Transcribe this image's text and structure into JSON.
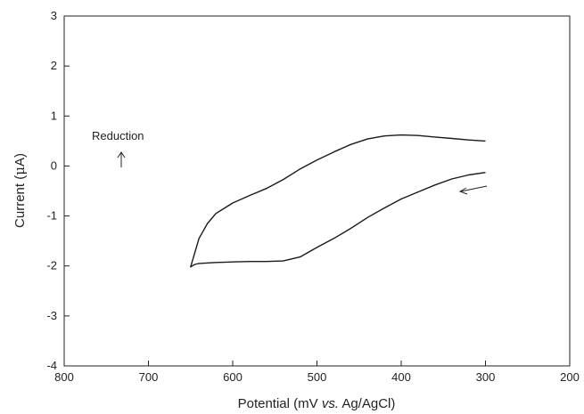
{
  "chart_data": {
    "type": "line",
    "title": "",
    "xlabel": {
      "prefix": "Potential (mV ",
      "italic": "vs.",
      "suffix": " Ag/AgCl)"
    },
    "ylabel": {
      "prefix": "Current (",
      "mu": "μ",
      "suffix": "A)"
    },
    "xlim": [
      800,
      200
    ],
    "ylim": [
      -4,
      3
    ],
    "x_reversed": true,
    "xticks": [
      800,
      700,
      600,
      500,
      400,
      300,
      200
    ],
    "yticks": [
      -4,
      -3,
      -2,
      -1,
      0,
      1,
      2,
      3
    ],
    "grid": false,
    "annotations": [
      {
        "text": "Reduction",
        "arrow": "up"
      },
      {
        "text": "",
        "arrow": "scan-direction-left"
      }
    ],
    "series": [
      {
        "stroke": "#1a1a1a",
        "x": [
          300,
          320,
          340,
          360,
          380,
          400,
          420,
          440,
          460,
          480,
          500,
          520,
          540,
          560,
          580,
          600,
          620,
          630,
          640,
          650,
          645,
          640,
          620,
          600,
          580,
          560,
          540,
          520,
          500,
          480,
          460,
          440,
          420,
          400,
          380,
          360,
          340,
          320,
          300
        ],
        "y": [
          0.5,
          0.52,
          0.55,
          0.58,
          0.61,
          0.62,
          0.6,
          0.54,
          0.43,
          0.28,
          0.12,
          -0.06,
          -0.27,
          -0.45,
          -0.59,
          -0.74,
          -0.95,
          -1.15,
          -1.45,
          -2.02,
          -1.97,
          -1.95,
          -1.93,
          -1.92,
          -1.91,
          -1.91,
          -1.9,
          -1.82,
          -1.63,
          -1.45,
          -1.25,
          -1.03,
          -0.84,
          -0.66,
          -0.52,
          -0.38,
          -0.26,
          -0.18,
          -0.13
        ]
      }
    ]
  },
  "colors": {
    "axis": "#222222",
    "line": "#1a1a1a",
    "background": "#ffffff"
  }
}
